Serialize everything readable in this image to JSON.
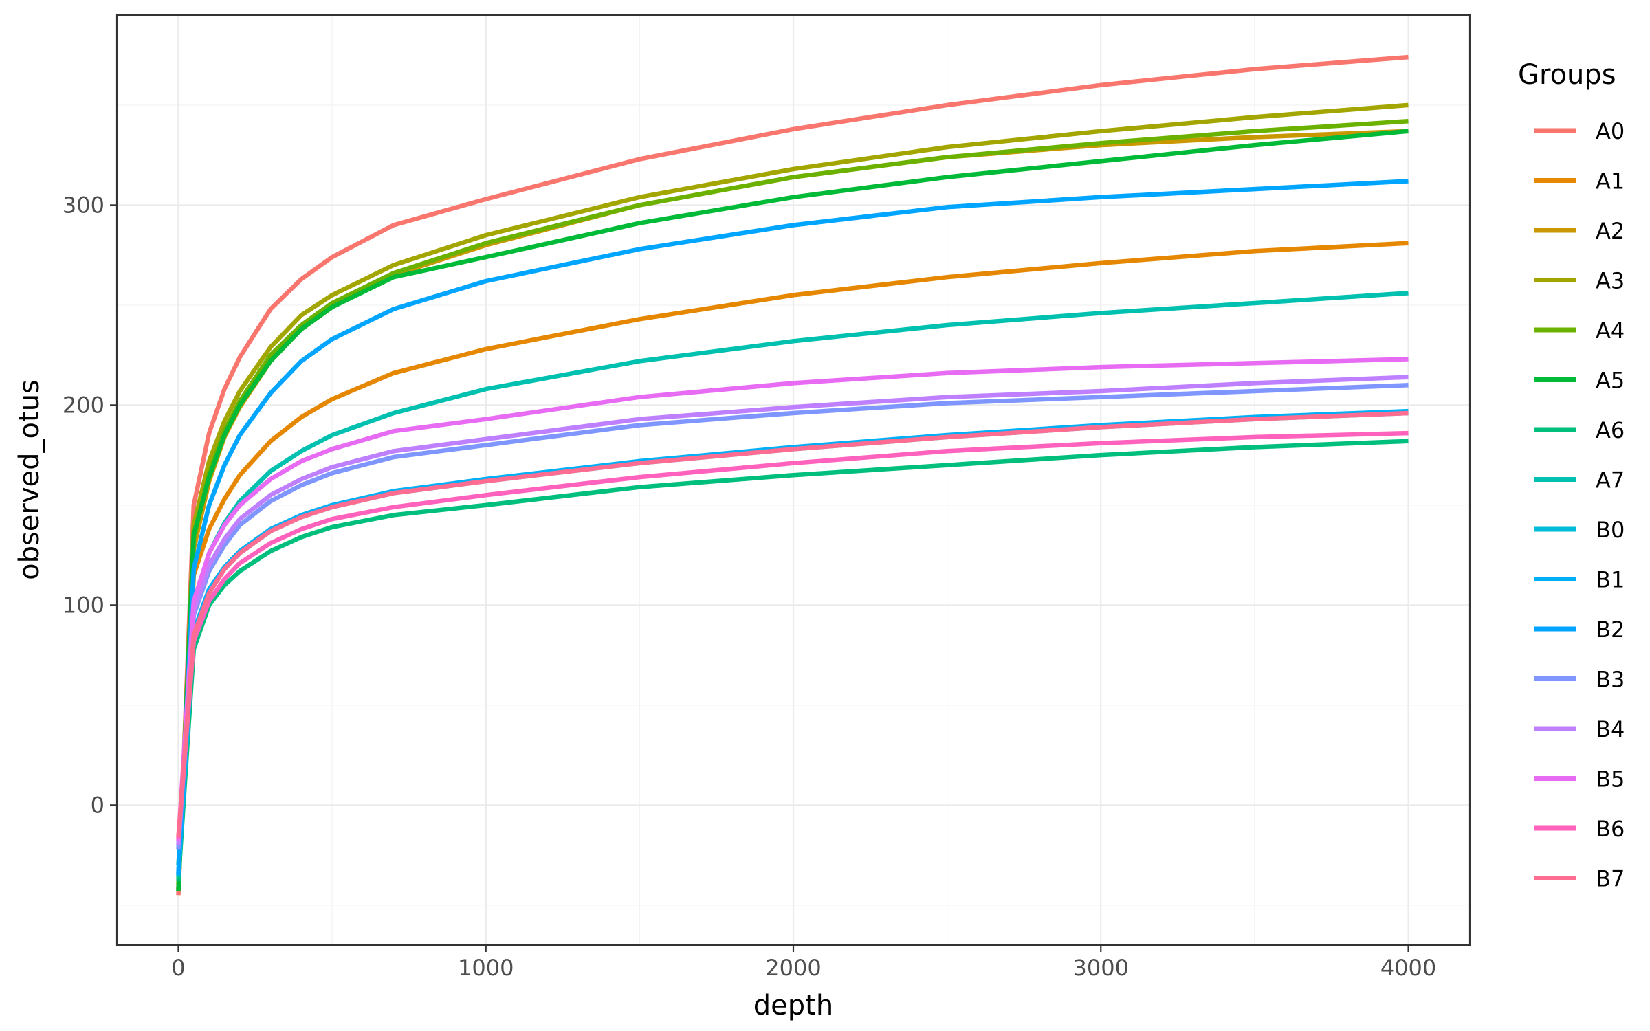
{
  "chart_data": {
    "type": "line",
    "xlabel": "depth",
    "ylabel": "observed_otus",
    "xlim": [
      -200,
      4200
    ],
    "ylim": [
      -70,
      395
    ],
    "x_ticks": [
      0,
      1000,
      2000,
      3000,
      4000
    ],
    "y_ticks": [
      0,
      100,
      200,
      300
    ],
    "x_tick_labels": [
      "0",
      "1000",
      "2000",
      "3000",
      "4000"
    ],
    "y_tick_labels": [
      "0",
      "100",
      "200",
      "300"
    ],
    "grid": true,
    "legend": {
      "title": "Groups",
      "position": "right"
    },
    "x": [
      0,
      50,
      100,
      150,
      200,
      300,
      400,
      500,
      700,
      1000,
      1500,
      2000,
      2500,
      3000,
      3500,
      4000
    ],
    "series": [
      {
        "name": "A0",
        "color": "#F8766D",
        "values": [
          -45,
          150,
          186,
          208,
          224,
          248,
          263,
          274,
          290,
          303,
          323,
          338,
          350,
          360,
          368,
          374
        ]
      },
      {
        "name": "A1",
        "color": "#E58700",
        "values": [
          -40,
          115,
          138,
          153,
          165,
          182,
          194,
          203,
          216,
          228,
          243,
          255,
          264,
          271,
          277,
          281
        ]
      },
      {
        "name": "A2",
        "color": "#C99800",
        "values": [
          -42,
          128,
          162,
          184,
          199,
          222,
          238,
          249,
          265,
          280,
          300,
          314,
          324,
          330,
          334,
          337
        ]
      },
      {
        "name": "A3",
        "color": "#A3A500",
        "values": [
          -43,
          140,
          172,
          192,
          207,
          229,
          245,
          255,
          270,
          285,
          304,
          318,
          329,
          337,
          344,
          350
        ]
      },
      {
        "name": "A4",
        "color": "#6BB100",
        "values": [
          -42,
          133,
          166,
          187,
          202,
          225,
          240,
          251,
          266,
          281,
          300,
          314,
          324,
          331,
          337,
          342
        ]
      },
      {
        "name": "A5",
        "color": "#00BA38",
        "values": [
          -43,
          135,
          164,
          185,
          200,
          222,
          238,
          249,
          264,
          274,
          291,
          304,
          314,
          322,
          330,
          337
        ]
      },
      {
        "name": "A6",
        "color": "#00BF7D",
        "values": [
          -38,
          78,
          100,
          110,
          117,
          127,
          134,
          139,
          145,
          150,
          159,
          165,
          170,
          175,
          179,
          182
        ]
      },
      {
        "name": "A7",
        "color": "#00C0AF",
        "values": [
          -36,
          100,
          126,
          141,
          152,
          167,
          177,
          185,
          196,
          208,
          222,
          232,
          240,
          246,
          251,
          256
        ]
      },
      {
        "name": "B0",
        "color": "#00BCD8",
        "values": [
          -30,
          86,
          107,
          118,
          126,
          137,
          144,
          149,
          156,
          162,
          171,
          178,
          184,
          189,
          193,
          196
        ]
      },
      {
        "name": "B1",
        "color": "#00B0F6",
        "values": [
          -34,
          87,
          108,
          119,
          127,
          138,
          145,
          150,
          157,
          163,
          172,
          179,
          185,
          190,
          194,
          197
        ]
      },
      {
        "name": "B2",
        "color": "#00A5FF",
        "values": [
          -35,
          118,
          150,
          170,
          185,
          206,
          222,
          233,
          248,
          262,
          278,
          290,
          299,
          304,
          308,
          312
        ]
      },
      {
        "name": "B3",
        "color": "#7F96FF",
        "values": [
          -22,
          95,
          117,
          130,
          140,
          152,
          160,
          166,
          174,
          180,
          190,
          196,
          201,
          204,
          207,
          210
        ]
      },
      {
        "name": "B4",
        "color": "#BF80FF",
        "values": [
          -20,
          97,
          120,
          133,
          143,
          155,
          163,
          169,
          177,
          183,
          193,
          199,
          204,
          207,
          211,
          214
        ]
      },
      {
        "name": "B5",
        "color": "#E76BF3",
        "values": [
          -18,
          102,
          126,
          140,
          150,
          163,
          172,
          178,
          187,
          193,
          204,
          211,
          216,
          219,
          221,
          223
        ]
      },
      {
        "name": "B6",
        "color": "#FF62BC",
        "values": [
          -17,
          82,
          102,
          113,
          121,
          131,
          138,
          143,
          149,
          155,
          164,
          171,
          177,
          181,
          184,
          186
        ]
      },
      {
        "name": "B7",
        "color": "#FF6C91",
        "values": [
          -16,
          85,
          106,
          118,
          126,
          137,
          144,
          149,
          156,
          162,
          171,
          178,
          184,
          189,
          193,
          196
        ]
      }
    ]
  }
}
